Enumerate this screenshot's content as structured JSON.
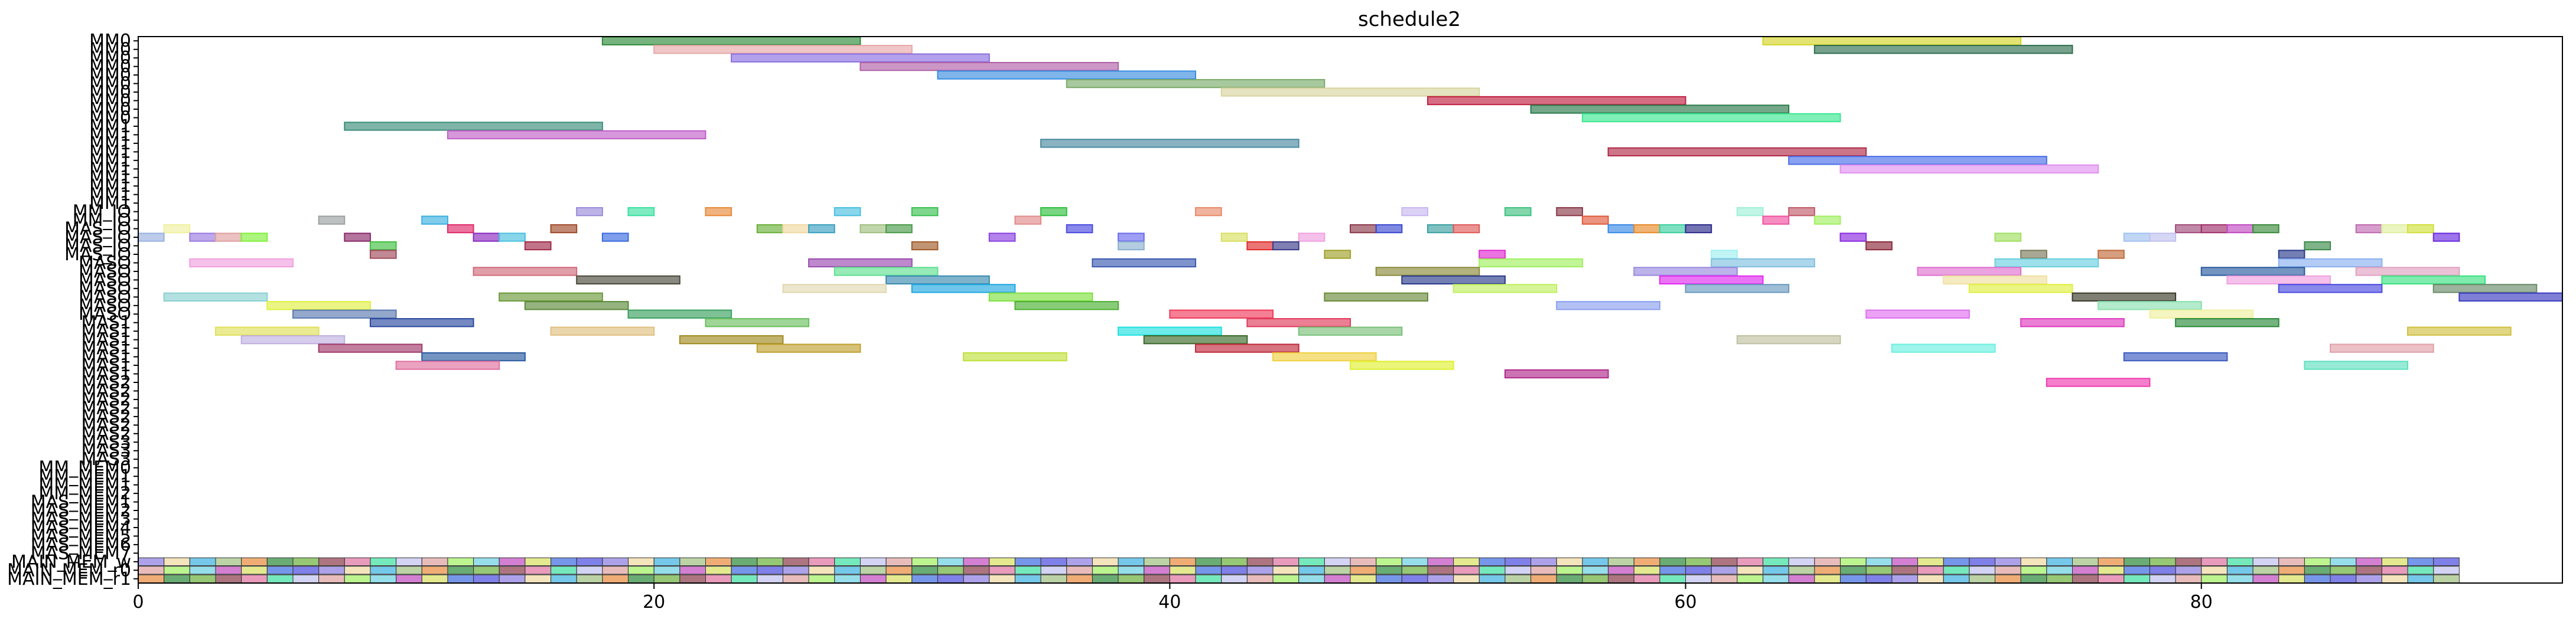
{
  "chart_data": {
    "type": "gantt",
    "title": "schedule2",
    "xlim": [
      0,
      94
    ],
    "xticks": [
      0,
      20,
      40,
      60,
      80
    ],
    "rows": [
      "MM0",
      "MM0",
      "MM0",
      "MM0",
      "MM0",
      "MM0",
      "MM0",
      "MM0",
      "MM0",
      "MM0",
      "MM1",
      "MM1",
      "MM1",
      "MM1",
      "MM1",
      "MM1",
      "MM1",
      "MM1",
      "MM1",
      "MM1",
      "MM_IO",
      "MM_IO",
      "MAS_IO",
      "MAS_IO",
      "MAS_IO",
      "MAS_IO",
      "MASO",
      "MASO",
      "MASO",
      "MASO",
      "MASO",
      "MASO",
      "MASO",
      "MAS1",
      "MAS1",
      "MAS1",
      "MAS1",
      "MAS1",
      "MAS1",
      "MAS1",
      "MAS2",
      "MAS2",
      "MAS2",
      "MAS2",
      "MAS2",
      "MAS2",
      "MAS2",
      "MAS3",
      "MAS3",
      "MAS3",
      "MM_MEM0",
      "MM_MEM1",
      "MM_MEM1",
      "MM_MEM2",
      "MAS_MEM1",
      "MAS_MEM2",
      "MAS_MEM3",
      "MAS_MEM4",
      "MAS_MEM5",
      "MAS_MEM6",
      "MAS_MEM7",
      "MAIN_MEM_w",
      "MAIN_MEM_r0",
      "MAIN_MEM_r1"
    ],
    "bars": [
      {
        "row": 0,
        "start": 18,
        "end": 28,
        "color": "#2e8b3a"
      },
      {
        "row": 0,
        "start": 63,
        "end": 73,
        "color": "#d4d42a"
      },
      {
        "row": 1,
        "start": 20,
        "end": 30,
        "color": "#e8a8a8"
      },
      {
        "row": 1,
        "start": 65,
        "end": 75,
        "color": "#2e6e4e"
      },
      {
        "row": 2,
        "start": 23,
        "end": 33,
        "color": "#8a6ee0"
      },
      {
        "row": 3,
        "start": 28,
        "end": 38,
        "color": "#b060a8"
      },
      {
        "row": 4,
        "start": 31,
        "end": 41,
        "color": "#3a8ee0"
      },
      {
        "row": 5,
        "start": 36,
        "end": 46,
        "color": "#7aaa6a"
      },
      {
        "row": 6,
        "start": 42,
        "end": 52,
        "color": "#d8d4a0"
      },
      {
        "row": 7,
        "start": 50,
        "end": 60,
        "color": "#c02040"
      },
      {
        "row": 8,
        "start": 54,
        "end": 64,
        "color": "#2a7a4a"
      },
      {
        "row": 9,
        "start": 56,
        "end": 66,
        "color": "#3ae890"
      },
      {
        "row": 10,
        "start": 8,
        "end": 18,
        "color": "#3a8e7a"
      },
      {
        "row": 11,
        "start": 12,
        "end": 22,
        "color": "#c060c8"
      },
      {
        "row": 12,
        "start": 35,
        "end": 45,
        "color": "#4a8aa0"
      },
      {
        "row": 13,
        "start": 57,
        "end": 67,
        "color": "#b02a48"
      },
      {
        "row": 14,
        "start": 64,
        "end": 74,
        "color": "#4a6ee8"
      },
      {
        "row": 15,
        "start": 66,
        "end": 76,
        "color": "#e090f0"
      },
      {
        "row": 20,
        "start": 17,
        "end": 18,
        "color": "#9a8ad8"
      },
      {
        "row": 20,
        "start": 19,
        "end": 20,
        "color": "#3ae0a0"
      },
      {
        "row": 20,
        "start": 22,
        "end": 23,
        "color": "#e88a3a"
      },
      {
        "row": 20,
        "start": 27,
        "end": 28,
        "color": "#4ac0e0"
      },
      {
        "row": 20,
        "start": 30,
        "end": 31,
        "color": "#3ac050"
      },
      {
        "row": 20,
        "start": 35,
        "end": 36,
        "color": "#30c040"
      },
      {
        "row": 20,
        "start": 41,
        "end": 42,
        "color": "#e88a6a"
      },
      {
        "row": 20,
        "start": 49,
        "end": 50,
        "color": "#c8b8f0"
      },
      {
        "row": 20,
        "start": 53,
        "end": 54,
        "color": "#40c080"
      },
      {
        "row": 20,
        "start": 55,
        "end": 56,
        "color": "#8a3a4a"
      },
      {
        "row": 20,
        "start": 62,
        "end": 63,
        "color": "#a0f0d8"
      },
      {
        "row": 20,
        "start": 64,
        "end": 65,
        "color": "#c05a6a"
      },
      {
        "row": 21,
        "start": 7,
        "end": 8,
        "color": "#9aa0a0"
      },
      {
        "row": 21,
        "start": 11,
        "end": 12,
        "color": "#3ab0e0"
      },
      {
        "row": 21,
        "start": 34,
        "end": 35,
        "color": "#e08a8a"
      },
      {
        "row": 21,
        "start": 56,
        "end": 57,
        "color": "#e05a3a"
      },
      {
        "row": 21,
        "start": 63,
        "end": 64,
        "color": "#f050a0"
      },
      {
        "row": 21,
        "start": 65,
        "end": 66,
        "color": "#a0f060"
      },
      {
        "row": 22,
        "start": 1,
        "end": 2,
        "color": "#f0f0a0"
      },
      {
        "row": 22,
        "start": 12,
        "end": 13,
        "color": "#e02a6a"
      },
      {
        "row": 22,
        "start": 16,
        "end": 17,
        "color": "#a04a2a"
      },
      {
        "row": 22,
        "start": 24,
        "end": 25,
        "color": "#6ab03a"
      },
      {
        "row": 22,
        "start": 25,
        "end": 26,
        "color": "#f0d8a0"
      },
      {
        "row": 22,
        "start": 26,
        "end": 27,
        "color": "#3aa0c0"
      },
      {
        "row": 22,
        "start": 28,
        "end": 29,
        "color": "#a0c080"
      },
      {
        "row": 22,
        "start": 29,
        "end": 30,
        "color": "#4a9a4a"
      },
      {
        "row": 22,
        "start": 36,
        "end": 37,
        "color": "#4a4ae0"
      },
      {
        "row": 22,
        "start": 47,
        "end": 48,
        "color": "#8a3a4a"
      },
      {
        "row": 22,
        "start": 48,
        "end": 49,
        "color": "#3a4ad0"
      },
      {
        "row": 22,
        "start": 50,
        "end": 51,
        "color": "#3aa0a0"
      },
      {
        "row": 22,
        "start": 51,
        "end": 52,
        "color": "#e05a5a"
      },
      {
        "row": 22,
        "start": 57,
        "end": 58,
        "color": "#3a8ae8"
      },
      {
        "row": 22,
        "start": 58,
        "end": 59,
        "color": "#e88a2a"
      },
      {
        "row": 22,
        "start": 59,
        "end": 60,
        "color": "#3ad0a0"
      },
      {
        "row": 22,
        "start": 60,
        "end": 61,
        "color": "#2a2a8a"
      },
      {
        "row": 22,
        "start": 79,
        "end": 80,
        "color": "#a04a7a"
      },
      {
        "row": 22,
        "start": 80,
        "end": 81,
        "color": "#a0306a"
      },
      {
        "row": 22,
        "start": 81,
        "end": 82,
        "color": "#c04ac0"
      },
      {
        "row": 22,
        "start": 82,
        "end": 83,
        "color": "#3a8a3a"
      },
      {
        "row": 22,
        "start": 86,
        "end": 87,
        "color": "#c06ab0"
      },
      {
        "row": 22,
        "start": 87,
        "end": 88,
        "color": "#e0f0a0"
      },
      {
        "row": 22,
        "start": 88,
        "end": 89,
        "color": "#d0e03a"
      },
      {
        "row": 23,
        "start": 0,
        "end": 1,
        "color": "#9ab0e0"
      },
      {
        "row": 23,
        "start": 2,
        "end": 3,
        "color": "#9a7ae0"
      },
      {
        "row": 23,
        "start": 3,
        "end": 4,
        "color": "#e0a0a0"
      },
      {
        "row": 23,
        "start": 4,
        "end": 5,
        "color": "#80f03a"
      },
      {
        "row": 23,
        "start": 8,
        "end": 9,
        "color": "#8a2a6a"
      },
      {
        "row": 23,
        "start": 13,
        "end": 14,
        "color": "#8a2ac0"
      },
      {
        "row": 23,
        "start": 14,
        "end": 15,
        "color": "#4ac0e0"
      },
      {
        "row": 23,
        "start": 18,
        "end": 19,
        "color": "#3a6ae0"
      },
      {
        "row": 23,
        "start": 33,
        "end": 34,
        "color": "#8a40e0"
      },
      {
        "row": 23,
        "start": 38,
        "end": 39,
        "color": "#6a6af0"
      },
      {
        "row": 23,
        "start": 42,
        "end": 43,
        "color": "#d8e060"
      },
      {
        "row": 23,
        "start": 45,
        "end": 46,
        "color": "#f0a0e0"
      },
      {
        "row": 23,
        "start": 66,
        "end": 67,
        "color": "#8a2ae0"
      },
      {
        "row": 23,
        "start": 72,
        "end": 73,
        "color": "#a0e060"
      },
      {
        "row": 23,
        "start": 77,
        "end": 78,
        "color": "#a0c0f0"
      },
      {
        "row": 23,
        "start": 78,
        "end": 79,
        "color": "#c0c0f0"
      },
      {
        "row": 23,
        "start": 89,
        "end": 90,
        "color": "#6a2ae0"
      },
      {
        "row": 24,
        "start": 9,
        "end": 10,
        "color": "#40c040"
      },
      {
        "row": 24,
        "start": 15,
        "end": 16,
        "color": "#a02a4a"
      },
      {
        "row": 24,
        "start": 30,
        "end": 31,
        "color": "#a05a2a"
      },
      {
        "row": 24,
        "start": 38,
        "end": 39,
        "color": "#8ab0d0"
      },
      {
        "row": 24,
        "start": 43,
        "end": 44,
        "color": "#e02a2a"
      },
      {
        "row": 24,
        "start": 44,
        "end": 45,
        "color": "#3a3a8a"
      },
      {
        "row": 24,
        "start": 67,
        "end": 68,
        "color": "#8a2a3a"
      },
      {
        "row": 24,
        "start": 84,
        "end": 85,
        "color": "#3a8a4a"
      },
      {
        "row": 25,
        "start": 9,
        "end": 10,
        "color": "#a04a5a"
      },
      {
        "row": 25,
        "start": 46,
        "end": 47,
        "color": "#a0a02a"
      },
      {
        "row": 25,
        "start": 52,
        "end": 53,
        "color": "#e02ad0"
      },
      {
        "row": 25,
        "start": 61,
        "end": 62,
        "color": "#a0f0f0"
      },
      {
        "row": 25,
        "start": 73,
        "end": 74,
        "color": "#7a7a5a"
      },
      {
        "row": 25,
        "start": 76,
        "end": 77,
        "color": "#c06a3a"
      },
      {
        "row": 25,
        "start": 83,
        "end": 84,
        "color": "#2a3a8a"
      },
      {
        "row": 26,
        "start": 2,
        "end": 6,
        "color": "#f0a0e0"
      },
      {
        "row": 26,
        "start": 26,
        "end": 30,
        "color": "#9a4ab0"
      },
      {
        "row": 26,
        "start": 37,
        "end": 41,
        "color": "#3a5ab0"
      },
      {
        "row": 26,
        "start": 52,
        "end": 56,
        "color": "#a0f060"
      },
      {
        "row": 26,
        "start": 61,
        "end": 65,
        "color": "#80c0e0"
      },
      {
        "row": 26,
        "start": 72,
        "end": 76,
        "color": "#6ad0e0"
      },
      {
        "row": 26,
        "start": 83,
        "end": 87,
        "color": "#8ab0f0"
      },
      {
        "row": 27,
        "start": 13,
        "end": 17,
        "color": "#d06a7a"
      },
      {
        "row": 27,
        "start": 27,
        "end": 31,
        "color": "#60e090"
      },
      {
        "row": 27,
        "start": 48,
        "end": 52,
        "color": "#8a8a3a"
      },
      {
        "row": 27,
        "start": 58,
        "end": 62,
        "color": "#9a8ae0"
      },
      {
        "row": 27,
        "start": 69,
        "end": 73,
        "color": "#e070d0"
      },
      {
        "row": 27,
        "start": 80,
        "end": 84,
        "color": "#2a5aa0"
      },
      {
        "row": 27,
        "start": 86,
        "end": 90,
        "color": "#e0a0c0"
      },
      {
        "row": 28,
        "start": 17,
        "end": 21,
        "color": "#4a4a3a"
      },
      {
        "row": 28,
        "start": 29,
        "end": 33,
        "color": "#3a8ab0"
      },
      {
        "row": 28,
        "start": 49,
        "end": 53,
        "color": "#2a3a8a"
      },
      {
        "row": 28,
        "start": 59,
        "end": 63,
        "color": "#e02af0"
      },
      {
        "row": 28,
        "start": 70,
        "end": 74,
        "color": "#f0e0a0"
      },
      {
        "row": 28,
        "start": 81,
        "end": 85,
        "color": "#f0a0e0"
      },
      {
        "row": 28,
        "start": 87,
        "end": 91,
        "color": "#3ae080"
      },
      {
        "row": 29,
        "start": 25,
        "end": 29,
        "color": "#e0d8b0"
      },
      {
        "row": 29,
        "start": 30,
        "end": 34,
        "color": "#20a8e0"
      },
      {
        "row": 29,
        "start": 51,
        "end": 55,
        "color": "#c0f060"
      },
      {
        "row": 29,
        "start": 60,
        "end": 64,
        "color": "#6a9ac0"
      },
      {
        "row": 29,
        "start": 71,
        "end": 75,
        "color": "#e0f040"
      },
      {
        "row": 29,
        "start": 83,
        "end": 87,
        "color": "#4a4ae0"
      },
      {
        "row": 29,
        "start": 89,
        "end": 93,
        "color": "#6a8a6a"
      },
      {
        "row": 30,
        "start": 1,
        "end": 5,
        "color": "#8ad0d0"
      },
      {
        "row": 30,
        "start": 14,
        "end": 18,
        "color": "#6a9a3a"
      },
      {
        "row": 30,
        "start": 33,
        "end": 37,
        "color": "#80e040"
      },
      {
        "row": 30,
        "start": 46,
        "end": 50,
        "color": "#6a8a3a"
      },
      {
        "row": 30,
        "start": 75,
        "end": 79,
        "color": "#3a3a2a"
      },
      {
        "row": 30,
        "start": 90,
        "end": 94,
        "color": "#3a3ac0"
      },
      {
        "row": 31,
        "start": 5,
        "end": 9,
        "color": "#e0f040"
      },
      {
        "row": 31,
        "start": 15,
        "end": 19,
        "color": "#5a8a3a"
      },
      {
        "row": 31,
        "start": 34,
        "end": 38,
        "color": "#4ab030"
      },
      {
        "row": 31,
        "start": 55,
        "end": 59,
        "color": "#8aa0f0"
      },
      {
        "row": 31,
        "start": 76,
        "end": 80,
        "color": "#8ae0b0"
      },
      {
        "row": 32,
        "start": 6,
        "end": 10,
        "color": "#5a7ab0"
      },
      {
        "row": 32,
        "start": 19,
        "end": 23,
        "color": "#3aa060"
      },
      {
        "row": 32,
        "start": 40,
        "end": 44,
        "color": "#f03a5a"
      },
      {
        "row": 32,
        "start": 67,
        "end": 71,
        "color": "#e070f0"
      },
      {
        "row": 32,
        "start": 78,
        "end": 82,
        "color": "#f0f0a0"
      },
      {
        "row": 33,
        "start": 9,
        "end": 13,
        "color": "#2a4aa0"
      },
      {
        "row": 33,
        "start": 22,
        "end": 26,
        "color": "#6ac060"
      },
      {
        "row": 33,
        "start": 43,
        "end": 47,
        "color": "#e03a5a"
      },
      {
        "row": 33,
        "start": 73,
        "end": 77,
        "color": "#e03ac0"
      },
      {
        "row": 33,
        "start": 79,
        "end": 83,
        "color": "#2a8a3a"
      },
      {
        "row": 34,
        "start": 3,
        "end": 7,
        "color": "#e0e05a"
      },
      {
        "row": 34,
        "start": 16,
        "end": 20,
        "color": "#e0c080"
      },
      {
        "row": 34,
        "start": 38,
        "end": 42,
        "color": "#20e0e0"
      },
      {
        "row": 34,
        "start": 45,
        "end": 49,
        "color": "#7ac07a"
      },
      {
        "row": 34,
        "start": 88,
        "end": 92,
        "color": "#d0c040"
      },
      {
        "row": 35,
        "start": 4,
        "end": 8,
        "color": "#c0b0e0"
      },
      {
        "row": 35,
        "start": 21,
        "end": 25,
        "color": "#a08a20"
      },
      {
        "row": 35,
        "start": 39,
        "end": 43,
        "color": "#3a6a2a"
      },
      {
        "row": 35,
        "start": 62,
        "end": 66,
        "color": "#c0c0a0"
      },
      {
        "row": 36,
        "start": 7,
        "end": 11,
        "color": "#a03a6a"
      },
      {
        "row": 36,
        "start": 24,
        "end": 28,
        "color": "#c0a030"
      },
      {
        "row": 36,
        "start": 41,
        "end": 45,
        "color": "#c02a3a"
      },
      {
        "row": 36,
        "start": 68,
        "end": 72,
        "color": "#6af0e0"
      },
      {
        "row": 36,
        "start": 85,
        "end": 89,
        "color": "#e0a0a8"
      },
      {
        "row": 37,
        "start": 11,
        "end": 15,
        "color": "#2a5aa0"
      },
      {
        "row": 37,
        "start": 32,
        "end": 36,
        "color": "#c0e03a"
      },
      {
        "row": 37,
        "start": 44,
        "end": 48,
        "color": "#f0d040"
      },
      {
        "row": 37,
        "start": 77,
        "end": 81,
        "color": "#3a5ac0"
      },
      {
        "row": 38,
        "start": 10,
        "end": 14,
        "color": "#e070a0"
      },
      {
        "row": 38,
        "start": 47,
        "end": 51,
        "color": "#e0f030"
      },
      {
        "row": 38,
        "start": 84,
        "end": 88,
        "color": "#60e0c0"
      },
      {
        "row": 39,
        "start": 53,
        "end": 57,
        "color": "#b02a8a"
      },
      {
        "row": 40,
        "start": 74,
        "end": 78,
        "color": "#f03ab0"
      }
    ],
    "mem_rows": {
      "start": 0,
      "end": 90,
      "row_indices": [
        61,
        62,
        63
      ]
    }
  }
}
